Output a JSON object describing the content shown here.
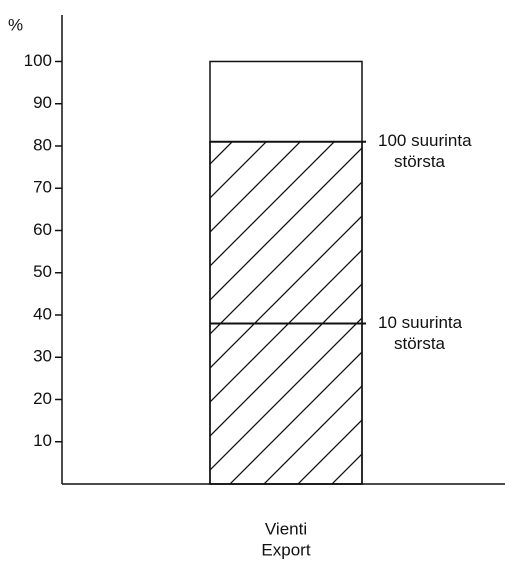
{
  "chart_data": {
    "type": "bar",
    "y_label": "%",
    "categories": [
      [
        "Vienti",
        "Export"
      ]
    ],
    "values": [
      100
    ],
    "annotations": [
      {
        "text": [
          "100 suurinta",
          "största"
        ],
        "y": 81
      },
      {
        "text": [
          "10 suurinta",
          "största"
        ],
        "y": 38
      }
    ],
    "hatch_to_annotation": 0,
    "ylim": [
      0,
      111
    ],
    "yticks": [
      10,
      20,
      30,
      40,
      50,
      60,
      70,
      80,
      90,
      100
    ]
  }
}
